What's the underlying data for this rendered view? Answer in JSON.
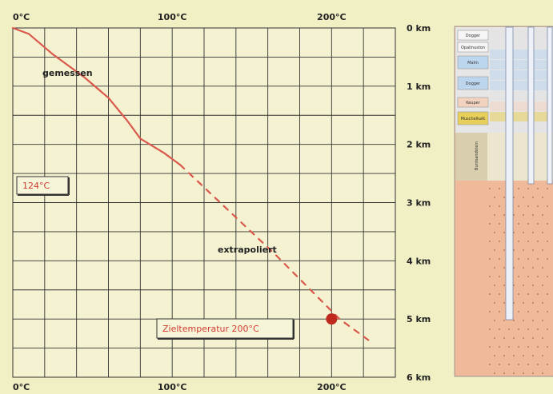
{
  "chart_data": {
    "type": "line",
    "x_axis": {
      "unit": "°C",
      "range": [
        0,
        240
      ],
      "ticks": [
        {
          "value": 0,
          "label": "0°C"
        },
        {
          "value": 100,
          "label": "100°C"
        },
        {
          "value": 200,
          "label": "200°C"
        }
      ]
    },
    "y_axis": {
      "unit": "km",
      "range": [
        0,
        6
      ],
      "inverted": true,
      "ticks": [
        {
          "value": 0,
          "label": "0 km"
        },
        {
          "value": 1,
          "label": "1 km"
        },
        {
          "value": 2,
          "label": "2 km"
        },
        {
          "value": 3,
          "label": "3 km"
        },
        {
          "value": 4,
          "label": "4 km"
        },
        {
          "value": 5,
          "label": "5 km"
        },
        {
          "value": 6,
          "label": "6 km"
        }
      ]
    },
    "grid": true,
    "series": [
      {
        "name": "gemessen",
        "style": "solid",
        "color": "#d9594c",
        "points": [
          [
            0,
            0
          ],
          [
            10,
            0.1
          ],
          [
            25,
            0.45
          ],
          [
            45,
            0.85
          ],
          [
            60,
            1.2
          ],
          [
            72,
            1.6
          ],
          [
            80,
            1.9
          ],
          [
            95,
            2.15
          ],
          [
            105,
            2.35
          ]
        ]
      },
      {
        "name": "extrapoliert",
        "style": "dashed",
        "color": "#d9594c",
        "points": [
          [
            105,
            2.35
          ],
          [
            165,
            3.9
          ],
          [
            205,
            5.0
          ],
          [
            225,
            5.4
          ]
        ]
      }
    ],
    "annotations": [
      {
        "text": "gemessen",
        "kind": "label"
      },
      {
        "text": "124°C",
        "kind": "boxed-red"
      },
      {
        "text": "extrapoliert",
        "kind": "label"
      },
      {
        "text": "Zieltemperatur 200°C",
        "kind": "boxed-red"
      }
    ],
    "target_point": {
      "x": 200,
      "y": 5.0,
      "color": "#c0281e"
    }
  },
  "column": {
    "top_layers": [
      "Dogger",
      "Opalinuston",
      "Malm",
      "Dogger",
      "Keuper",
      "Muschelkalk",
      "Buntsandstein"
    ],
    "colors": {
      "upper": "#e6e6e6",
      "blue": "#bcd6ee",
      "tan": "#d9cfae",
      "orange": "#f2b47a",
      "bedrock": "#f0b99a",
      "tube": "#eef2f8",
      "yellow": "#e8cf5a"
    }
  }
}
